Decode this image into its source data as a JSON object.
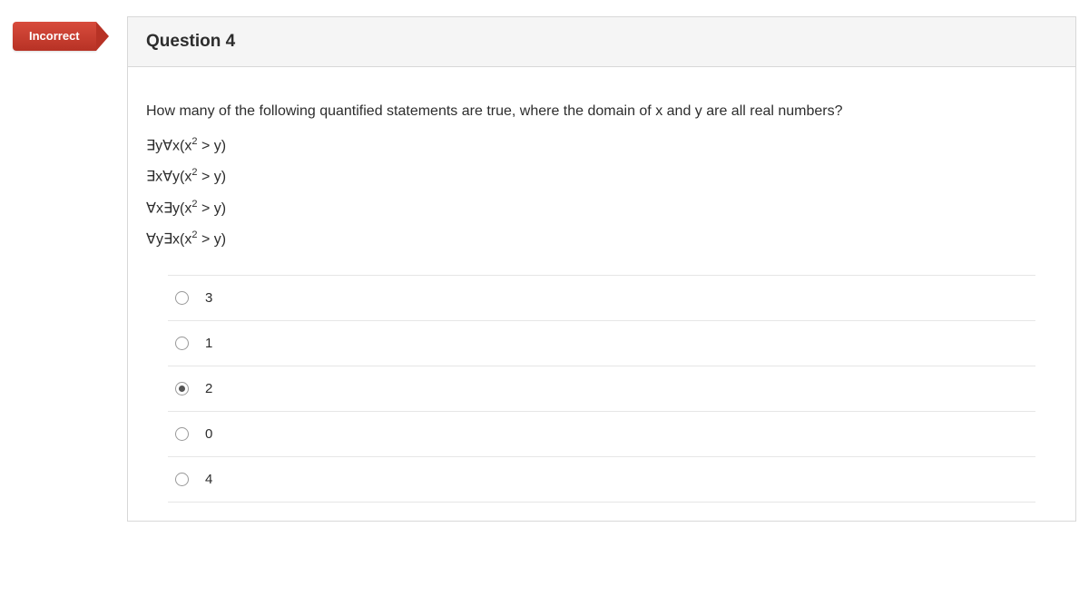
{
  "status": {
    "label": "Incorrect",
    "bg_gradient_top": "#d84b3c",
    "bg_gradient_bottom": "#b73225",
    "text_color": "#ffffff"
  },
  "question": {
    "title": "Question 4",
    "prompt": "How many of the following quantified statements are true, where the domain of x and y are all real numbers?",
    "statements": [
      "∃y∀x(x² > y)",
      "∃x∀y(x² > y)",
      "∀x∃y(x² > y)",
      "∀y∃x(x² > y)"
    ]
  },
  "options": [
    {
      "label": "3",
      "selected": false
    },
    {
      "label": "1",
      "selected": false
    },
    {
      "label": "2",
      "selected": true
    },
    {
      "label": "0",
      "selected": false
    },
    {
      "label": "4",
      "selected": false
    }
  ],
  "styling": {
    "header_bg": "#f5f5f5",
    "border_color": "#d8d8d8",
    "option_border": "#e6e6e6",
    "text_color": "#2d2d2d",
    "radio_border": "#999999",
    "radio_fill": "#555555",
    "title_fontsize": 19,
    "body_fontsize": 16,
    "option_fontsize": 15
  }
}
